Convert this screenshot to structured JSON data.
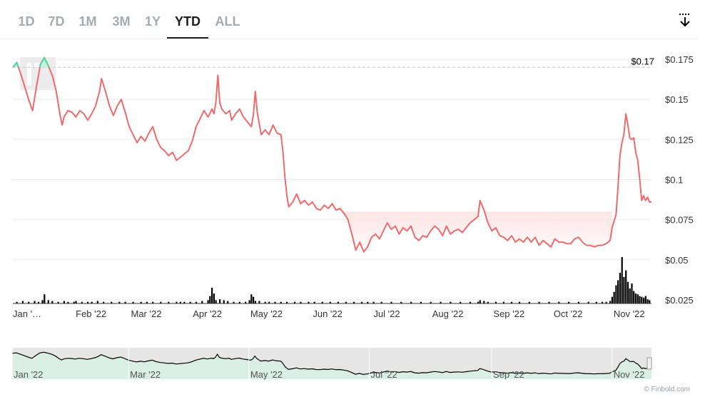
{
  "tabs": [
    "1D",
    "7D",
    "1M",
    "3M",
    "1Y",
    "YTD",
    "ALL"
  ],
  "active_tab": "YTD",
  "download_icon": "download-icon",
  "copyright": "© Finbold.com",
  "colors": {
    "line_down": "#ef6a6a",
    "line_up": "#4ed6a5",
    "fill_down": "#fde2e2",
    "volume": "#000000",
    "nav_bg": "#e6e6e6"
  },
  "chart_data": {
    "type": "line",
    "title": "",
    "xlabel": "",
    "ylabel": "",
    "ylim": [
      0.0125,
      0.1875
    ],
    "y_ticks": [
      0.025,
      0.05,
      0.075,
      0.1,
      0.125,
      0.15,
      0.175
    ],
    "y_tick_labels": [
      "$0.025",
      "$0.05",
      "$0.075",
      "$0.1",
      "$0.125",
      "$0.15",
      "$0.175"
    ],
    "x_tick_labels": [
      "Jan '…",
      "Feb '22",
      "Mar '22",
      "Apr '22",
      "May '22",
      "Jun '22",
      "Jul '22",
      "Aug '22",
      "Sep '22",
      "Oct '22",
      "Nov '22"
    ],
    "x_tick_days": [
      1,
      32,
      60,
      91,
      121,
      152,
      182,
      213,
      244,
      274,
      305
    ],
    "reference_line": {
      "value": 0.17,
      "label": "$0.17"
    },
    "x_range_days": [
      1,
      325
    ],
    "series": [
      {
        "points": [
          [
            1,
            0.17
          ],
          [
            3,
            0.173
          ],
          [
            5,
            0.166
          ],
          [
            7,
            0.158
          ],
          [
            9,
            0.15
          ],
          [
            11,
            0.143
          ],
          [
            13,
            0.158
          ],
          [
            15,
            0.172
          ],
          [
            17,
            0.176
          ],
          [
            19,
            0.171
          ],
          [
            21,
            0.165
          ],
          [
            23,
            0.155
          ],
          [
            25,
            0.14
          ],
          [
            26,
            0.134
          ],
          [
            27,
            0.139
          ],
          [
            29,
            0.143
          ],
          [
            31,
            0.142
          ],
          [
            33,
            0.139
          ],
          [
            35,
            0.143
          ],
          [
            37,
            0.141
          ],
          [
            39,
            0.137
          ],
          [
            41,
            0.141
          ],
          [
            43,
            0.146
          ],
          [
            45,
            0.155
          ],
          [
            46,
            0.163
          ],
          [
            48,
            0.155
          ],
          [
            50,
            0.146
          ],
          [
            52,
            0.14
          ],
          [
            54,
            0.146
          ],
          [
            56,
            0.15
          ],
          [
            58,
            0.142
          ],
          [
            60,
            0.133
          ],
          [
            62,
            0.128
          ],
          [
            64,
            0.123
          ],
          [
            66,
            0.127
          ],
          [
            68,
            0.124
          ],
          [
            70,
            0.129
          ],
          [
            72,
            0.133
          ],
          [
            74,
            0.125
          ],
          [
            76,
            0.12
          ],
          [
            78,
            0.118
          ],
          [
            80,
            0.115
          ],
          [
            82,
            0.117
          ],
          [
            84,
            0.112
          ],
          [
            86,
            0.114
          ],
          [
            88,
            0.116
          ],
          [
            90,
            0.118
          ],
          [
            92,
            0.124
          ],
          [
            94,
            0.133
          ],
          [
            96,
            0.138
          ],
          [
            98,
            0.143
          ],
          [
            100,
            0.139
          ],
          [
            102,
            0.144
          ],
          [
            103,
            0.141
          ],
          [
            104,
            0.148
          ],
          [
            105,
            0.165
          ],
          [
            106,
            0.148
          ],
          [
            107,
            0.144
          ],
          [
            109,
            0.141
          ],
          [
            111,
            0.143
          ],
          [
            112,
            0.137
          ],
          [
            114,
            0.141
          ],
          [
            116,
            0.144
          ],
          [
            118,
            0.139
          ],
          [
            120,
            0.136
          ],
          [
            122,
            0.133
          ],
          [
            123,
            0.14
          ],
          [
            124,
            0.155
          ],
          [
            125,
            0.142
          ],
          [
            127,
            0.128
          ],
          [
            129,
            0.131
          ],
          [
            131,
            0.128
          ],
          [
            133,
            0.134
          ],
          [
            135,
            0.129
          ],
          [
            137,
            0.128
          ],
          [
            138,
            0.118
          ],
          [
            139,
            0.102
          ],
          [
            140,
            0.09
          ],
          [
            141,
            0.083
          ],
          [
            143,
            0.086
          ],
          [
            145,
            0.091
          ],
          [
            147,
            0.085
          ],
          [
            149,
            0.087
          ],
          [
            151,
            0.084
          ],
          [
            153,
            0.086
          ],
          [
            155,
            0.082
          ],
          [
            157,
            0.081
          ],
          [
            159,
            0.084
          ],
          [
            161,
            0.082
          ],
          [
            163,
            0.085
          ],
          [
            165,
            0.081
          ],
          [
            167,
            0.082
          ],
          [
            169,
            0.079
          ],
          [
            171,
            0.075
          ],
          [
            173,
            0.066
          ],
          [
            175,
            0.056
          ],
          [
            177,
            0.061
          ],
          [
            179,
            0.055
          ],
          [
            181,
            0.058
          ],
          [
            183,
            0.064
          ],
          [
            185,
            0.066
          ],
          [
            187,
            0.063
          ],
          [
            189,
            0.068
          ],
          [
            191,
            0.073
          ],
          [
            193,
            0.069
          ],
          [
            195,
            0.071
          ],
          [
            197,
            0.066
          ],
          [
            199,
            0.07
          ],
          [
            201,
            0.068
          ],
          [
            203,
            0.071
          ],
          [
            205,
            0.064
          ],
          [
            207,
            0.062
          ],
          [
            209,
            0.065
          ],
          [
            211,
            0.064
          ],
          [
            213,
            0.068
          ],
          [
            215,
            0.071
          ],
          [
            217,
            0.069
          ],
          [
            219,
            0.065
          ],
          [
            221,
            0.071
          ],
          [
            223,
            0.066
          ],
          [
            225,
            0.068
          ],
          [
            227,
            0.069
          ],
          [
            229,
            0.067
          ],
          [
            231,
            0.07
          ],
          [
            233,
            0.073
          ],
          [
            235,
            0.075
          ],
          [
            237,
            0.077
          ],
          [
            238,
            0.087
          ],
          [
            240,
            0.081
          ],
          [
            242,
            0.073
          ],
          [
            244,
            0.068
          ],
          [
            246,
            0.07
          ],
          [
            248,
            0.065
          ],
          [
            250,
            0.064
          ],
          [
            252,
            0.062
          ],
          [
            254,
            0.065
          ],
          [
            256,
            0.061
          ],
          [
            258,
            0.063
          ],
          [
            260,
            0.061
          ],
          [
            262,
            0.064
          ],
          [
            264,
            0.061
          ],
          [
            266,
            0.064
          ],
          [
            268,
            0.059
          ],
          [
            270,
            0.062
          ],
          [
            272,
            0.06
          ],
          [
            274,
            0.058
          ],
          [
            276,
            0.063
          ],
          [
            278,
            0.061
          ],
          [
            280,
            0.061
          ],
          [
            282,
            0.06
          ],
          [
            284,
            0.06
          ],
          [
            286,
            0.063
          ],
          [
            288,
            0.064
          ],
          [
            290,
            0.061
          ],
          [
            292,
            0.059
          ],
          [
            294,
            0.059
          ],
          [
            296,
            0.058
          ],
          [
            298,
            0.059
          ],
          [
            300,
            0.059
          ],
          [
            302,
            0.06
          ],
          [
            304,
            0.062
          ],
          [
            305,
            0.07
          ],
          [
            307,
            0.078
          ],
          [
            308,
            0.095
          ],
          [
            309,
            0.115
          ],
          [
            310,
            0.123
          ],
          [
            311,
            0.128
          ],
          [
            312,
            0.141
          ],
          [
            313,
            0.134
          ],
          [
            314,
            0.126
          ],
          [
            315,
            0.125
          ],
          [
            316,
            0.126
          ],
          [
            317,
            0.117
          ],
          [
            318,
            0.112
          ],
          [
            319,
            0.101
          ],
          [
            320,
            0.087
          ],
          [
            321,
            0.09
          ],
          [
            322,
            0.087
          ],
          [
            323,
            0.089
          ],
          [
            324,
            0.086
          ],
          [
            325,
            0.086
          ]
        ]
      }
    ],
    "volume_days": [
      3,
      6,
      9,
      12,
      14,
      16,
      17,
      19,
      21,
      24,
      27,
      29,
      32,
      33,
      36,
      39,
      41,
      44,
      47,
      51,
      55,
      58,
      62,
      66,
      69,
      72,
      76,
      80,
      84,
      86,
      88,
      91,
      94,
      97,
      100,
      101,
      102,
      103,
      104,
      106,
      108,
      110,
      113,
      116,
      119,
      121,
      122,
      123,
      124,
      126,
      129,
      131,
      134,
      137,
      140,
      144,
      147,
      151,
      154,
      158,
      162,
      166,
      170,
      174,
      178,
      181,
      184,
      188,
      193,
      198,
      203,
      208,
      213,
      218,
      223,
      228,
      233,
      237,
      238,
      240,
      242,
      246,
      250,
      254,
      258,
      263,
      268,
      273,
      278,
      283,
      288,
      293,
      297,
      300,
      302,
      304,
      305,
      306,
      307,
      308,
      309,
      310,
      311,
      312,
      313,
      314,
      315,
      316,
      317,
      318,
      319,
      320,
      321,
      322,
      323,
      324
    ],
    "volume_values": [
      2,
      3,
      2,
      3,
      2,
      4,
      11,
      4,
      3,
      2,
      3,
      2,
      2,
      3,
      2,
      2,
      2,
      3,
      2,
      2,
      2,
      2,
      2,
      2,
      2,
      2,
      2,
      2,
      2,
      2,
      2,
      2,
      2,
      3,
      4,
      9,
      19,
      12,
      4,
      5,
      4,
      3,
      2,
      2,
      2,
      4,
      11,
      8,
      3,
      3,
      2,
      2,
      2,
      2,
      2,
      2,
      2,
      2,
      2,
      2,
      2,
      2,
      2,
      2,
      2,
      2,
      2,
      2,
      2,
      2,
      2,
      2,
      2,
      2,
      2,
      2,
      2,
      2,
      4,
      3,
      2,
      2,
      2,
      2,
      2,
      2,
      2,
      2,
      2,
      2,
      2,
      2,
      2,
      2,
      2,
      3,
      8,
      14,
      22,
      28,
      37,
      56,
      32,
      40,
      26,
      18,
      24,
      15,
      12,
      11,
      9,
      8,
      7,
      9,
      5,
      4
    ],
    "navigator_labels": [
      "Jan '22",
      "Mar '22",
      "May '22",
      "Jul '22",
      "Sep '22",
      "Nov '22"
    ],
    "navigator_days": [
      1,
      60,
      121,
      182,
      244,
      305
    ]
  }
}
